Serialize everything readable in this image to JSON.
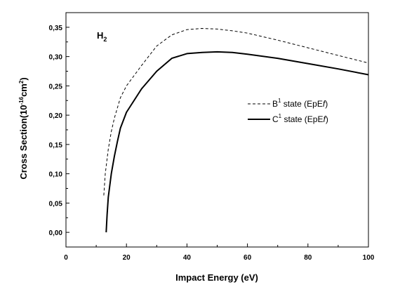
{
  "chart_data": {
    "type": "line",
    "xlabel": "Impact Energy (eV)",
    "ylabel": {
      "main": "Cross Section(10",
      "exp1": "-16",
      "mid": "cm",
      "exp2": "2",
      "end": ")"
    },
    "xlim": [
      0,
      100
    ],
    "ylim": [
      -0.025,
      0.375
    ],
    "x_ticks": [
      0,
      20,
      40,
      60,
      80,
      100
    ],
    "x_tick_labels": [
      "0",
      "20",
      "40",
      "60",
      "80",
      "100"
    ],
    "y_ticks": [
      0,
      0.05,
      0.1,
      0.15,
      0.2,
      0.25,
      0.3,
      0.35
    ],
    "y_tick_labels": [
      "0,00",
      "0,05",
      "0,10",
      "0,15",
      "0,20",
      "0,25",
      "0,30",
      "0,35"
    ],
    "grid": false,
    "annotation": {
      "text": "H",
      "sub": "2"
    },
    "legend": {
      "placement": "right"
    },
    "series": [
      {
        "name": {
          "pre": "B",
          "sup": "1",
          "post": " state (EpE",
          "it": "f",
          "end": ")"
        },
        "style": "dashed",
        "x": [
          12.5,
          13,
          14,
          15,
          16,
          18,
          20,
          25,
          30,
          35,
          40,
          45,
          50,
          55,
          60,
          70,
          80,
          90,
          100
        ],
        "y": [
          0.063,
          0.1,
          0.142,
          0.172,
          0.195,
          0.23,
          0.25,
          0.285,
          0.318,
          0.337,
          0.346,
          0.348,
          0.347,
          0.344,
          0.34,
          0.328,
          0.315,
          0.302,
          0.289
        ]
      },
      {
        "name": {
          "pre": "C",
          "sup": "1",
          "post": " state (EpE",
          "it": "f",
          "end": ")"
        },
        "style": "solid",
        "x": [
          13.3,
          13.6,
          14,
          15,
          16,
          17,
          18,
          20,
          25,
          30,
          35,
          40,
          45,
          50,
          55,
          60,
          70,
          80,
          90,
          100
        ],
        "y": [
          0.0,
          0.03,
          0.06,
          0.1,
          0.13,
          0.155,
          0.178,
          0.205,
          0.245,
          0.275,
          0.297,
          0.305,
          0.307,
          0.308,
          0.307,
          0.304,
          0.297,
          0.288,
          0.279,
          0.269
        ]
      }
    ]
  }
}
